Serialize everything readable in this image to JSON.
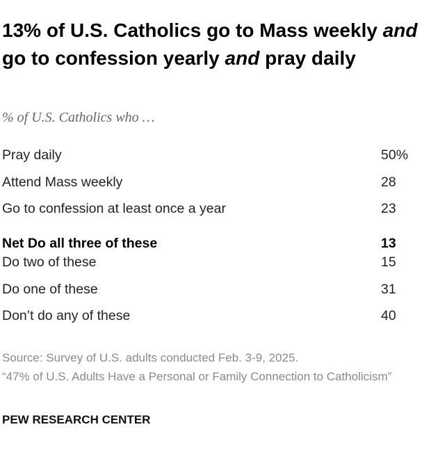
{
  "header": {
    "title": [
      {
        "text": "13% of U.S. Catholics go to Mass weekly",
        "italic": false
      },
      {
        "text": "and",
        "italic": true
      },
      {
        "text": "go to confession yearly",
        "italic": false
      },
      {
        "text": "and",
        "italic": true
      },
      {
        "text": "pray daily",
        "italic": false
      }
    ],
    "subtitle": "% of U.S. Catholics who …"
  },
  "table": {
    "rows": [
      {
        "label": "Pray daily",
        "value": "50%",
        "bold": false
      },
      {
        "label": "Attend Mass weekly",
        "value": "28",
        "bold": false
      },
      {
        "label": "Go to confession at least once a year",
        "value": "23",
        "bold": false
      },
      {
        "label": "Net Do all three of these",
        "value": "13",
        "bold": true
      },
      {
        "label": "Do two of these",
        "value": "15",
        "bold": false
      },
      {
        "label": "Do one of these",
        "value": "31",
        "bold": false
      },
      {
        "label": "Don’t do any of these",
        "value": "40",
        "bold": false
      }
    ]
  },
  "footer": {
    "source": [
      "Source: Survey of U.S. adults conducted Feb. 3-9, 2025.",
      "“47% of U.S. Adults Have a Personal or Family Connection to Catholicism”"
    ],
    "credit": "PEW RESEARCH CENTER"
  }
}
